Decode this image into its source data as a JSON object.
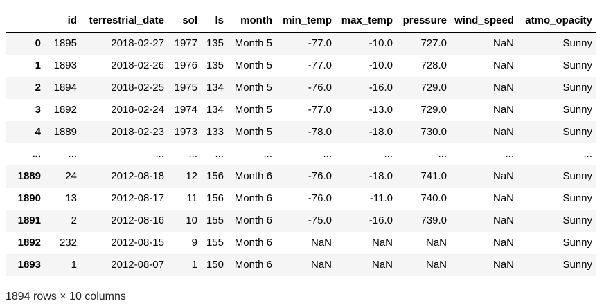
{
  "table": {
    "columns": [
      "",
      "id",
      "terrestrial_date",
      "sol",
      "ls",
      "month",
      "min_temp",
      "max_temp",
      "pressure",
      "wind_speed",
      "atmo_opacity"
    ],
    "rows": [
      [
        "0",
        "1895",
        "2018-02-27",
        "1977",
        "135",
        "Month 5",
        "-77.0",
        "-10.0",
        "727.0",
        "NaN",
        "Sunny"
      ],
      [
        "1",
        "1893",
        "2018-02-26",
        "1976",
        "135",
        "Month 5",
        "-77.0",
        "-10.0",
        "728.0",
        "NaN",
        "Sunny"
      ],
      [
        "2",
        "1894",
        "2018-02-25",
        "1975",
        "134",
        "Month 5",
        "-76.0",
        "-16.0",
        "729.0",
        "NaN",
        "Sunny"
      ],
      [
        "3",
        "1892",
        "2018-02-24",
        "1974",
        "134",
        "Month 5",
        "-77.0",
        "-13.0",
        "729.0",
        "NaN",
        "Sunny"
      ],
      [
        "4",
        "1889",
        "2018-02-23",
        "1973",
        "133",
        "Month 5",
        "-78.0",
        "-18.0",
        "730.0",
        "NaN",
        "Sunny"
      ],
      [
        "...",
        "...",
        "...",
        "...",
        "...",
        "...",
        "...",
        "...",
        "...",
        "...",
        "..."
      ],
      [
        "1889",
        "24",
        "2012-08-18",
        "12",
        "156",
        "Month 6",
        "-76.0",
        "-18.0",
        "741.0",
        "NaN",
        "Sunny"
      ],
      [
        "1890",
        "13",
        "2012-08-17",
        "11",
        "156",
        "Month 6",
        "-76.0",
        "-11.0",
        "740.0",
        "NaN",
        "Sunny"
      ],
      [
        "1891",
        "2",
        "2012-08-16",
        "10",
        "155",
        "Month 6",
        "-75.0",
        "-16.0",
        "739.0",
        "NaN",
        "Sunny"
      ],
      [
        "1892",
        "232",
        "2012-08-15",
        "9",
        "155",
        "Month 6",
        "NaN",
        "NaN",
        "NaN",
        "NaN",
        "Sunny"
      ],
      [
        "1893",
        "1",
        "2012-08-07",
        "1",
        "150",
        "Month 6",
        "NaN",
        "NaN",
        "NaN",
        "NaN",
        "Sunny"
      ]
    ]
  },
  "footer": {
    "summary": "1894 rows × 10 columns"
  }
}
